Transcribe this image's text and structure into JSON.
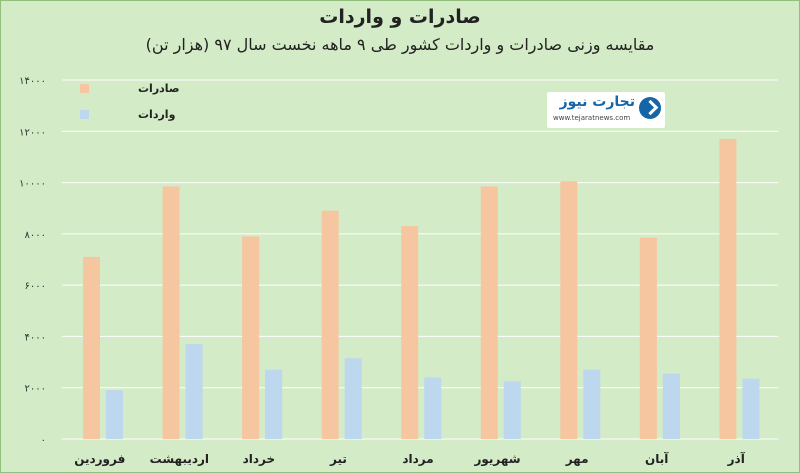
{
  "chart_data": {
    "type": "bar",
    "title": "صادرات و واردات",
    "subtitle": "مقایسه وزنی صادرات و واردات کشور طی ۹ ماهه نخست سال ۹۷ (هزار تن)",
    "categories": [
      "فروردین",
      "اردیبهشت",
      "خرداد",
      "تیر",
      "مرداد",
      "شهریور",
      "مهر",
      "آبان",
      "آذر"
    ],
    "series": [
      {
        "name": "صادرات",
        "color": "#f6c6a1",
        "values": [
          7100,
          9850,
          7900,
          8900,
          8300,
          9850,
          10050,
          7850,
          11700
        ]
      },
      {
        "name": "واردات",
        "color": "#bcd7ee",
        "values": [
          1900,
          3700,
          2700,
          3150,
          2400,
          2250,
          2700,
          2550,
          2350
        ]
      }
    ],
    "y_ticks": [
      "۰",
      "۲۰۰۰",
      "۴۰۰۰",
      "۶۰۰۰",
      "۸۰۰۰",
      "۱۰۰۰۰",
      "۱۲۰۰۰",
      "۱۴۰۰۰"
    ],
    "ylim": [
      0,
      14000
    ],
    "grid": true,
    "legend_position": "top-left"
  },
  "logo": {
    "name": "تجارت نیوز",
    "url": "www.tejaratnews.com"
  }
}
